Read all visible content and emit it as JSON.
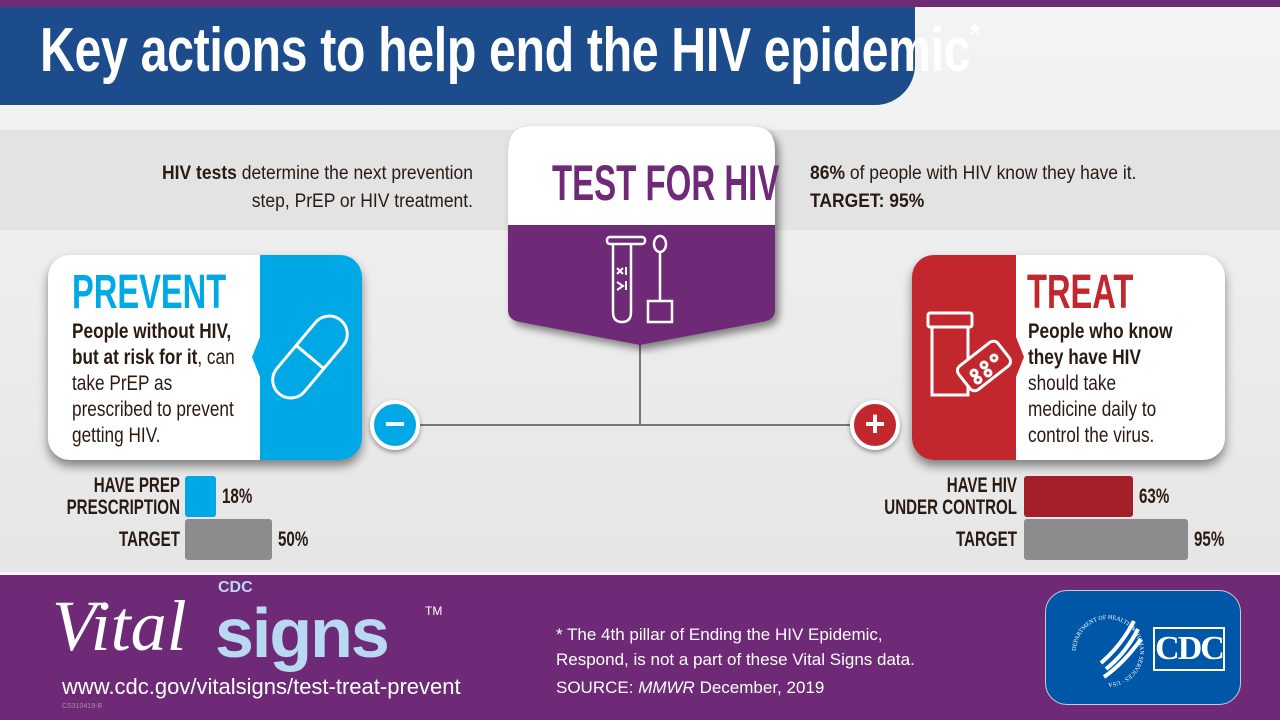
{
  "title": "Key actions to help end the HIV epidemic",
  "title_asterisk": "*",
  "test": {
    "heading": "TEST FOR HIV",
    "left_bold": "HIV tests",
    "left_text": " determine the next prevention step, PrEP or HIV treatment.",
    "right_bold": "86%",
    "right_text": " of people with HIV know they have it.",
    "target": "TARGET: 95%",
    "icon": "test-tube-and-swab-icon",
    "color": "#6e2a76"
  },
  "prevent": {
    "heading": "PREVENT",
    "bold": "People without HIV, but at risk for it",
    "text": ", can take PrEP as prescribed to prevent getting HIV.",
    "icon": "pill-capsule-icon",
    "sign": "−",
    "color": "#00a9e6",
    "bars": [
      {
        "label_line1": "HAVE PREP",
        "label_line2": "PRESCRIPTION",
        "value": 18,
        "value_label": "18%",
        "color": "#00a9e6"
      },
      {
        "label_line1": "TARGET",
        "label_line2": "",
        "value": 50,
        "value_label": "50%",
        "color": "#8c8c8e"
      }
    ]
  },
  "treat": {
    "heading": "TREAT",
    "bold1": "People who know they have HIV",
    "text": " should take medicine daily to control the virus.",
    "icon": "pill-bottle-icon",
    "sign": "+",
    "color": "#c1272d",
    "bars": [
      {
        "label_line1": "HAVE HIV",
        "label_line2": "UNDER CONTROL",
        "value": 63,
        "value_label": "63%",
        "color": "#a31f29"
      },
      {
        "label_line1": "TARGET",
        "label_line2": "",
        "value": 95,
        "value_label": "95%",
        "color": "#8c8c8e"
      }
    ]
  },
  "footer": {
    "brand_vital": "Vital",
    "brand_signs": "signs",
    "brand_cdc": "CDC",
    "brand_tm": "TM",
    "url": "www.cdc.gov/vitalsigns/test-treat-prevent",
    "code": "CS310419-B",
    "note_line1": "* The 4th pillar of Ending the HIV Epidemic,",
    "note_line2": "Respond, is not a part of these Vital Signs data.",
    "source_label": "SOURCE: ",
    "source_pub": "MMWR",
    "source_date": " December, 2019",
    "logo_text": "CDC",
    "seal_text": "DEPARTMENT OF HEALTH & HUMAN SERVICES · USA"
  }
}
